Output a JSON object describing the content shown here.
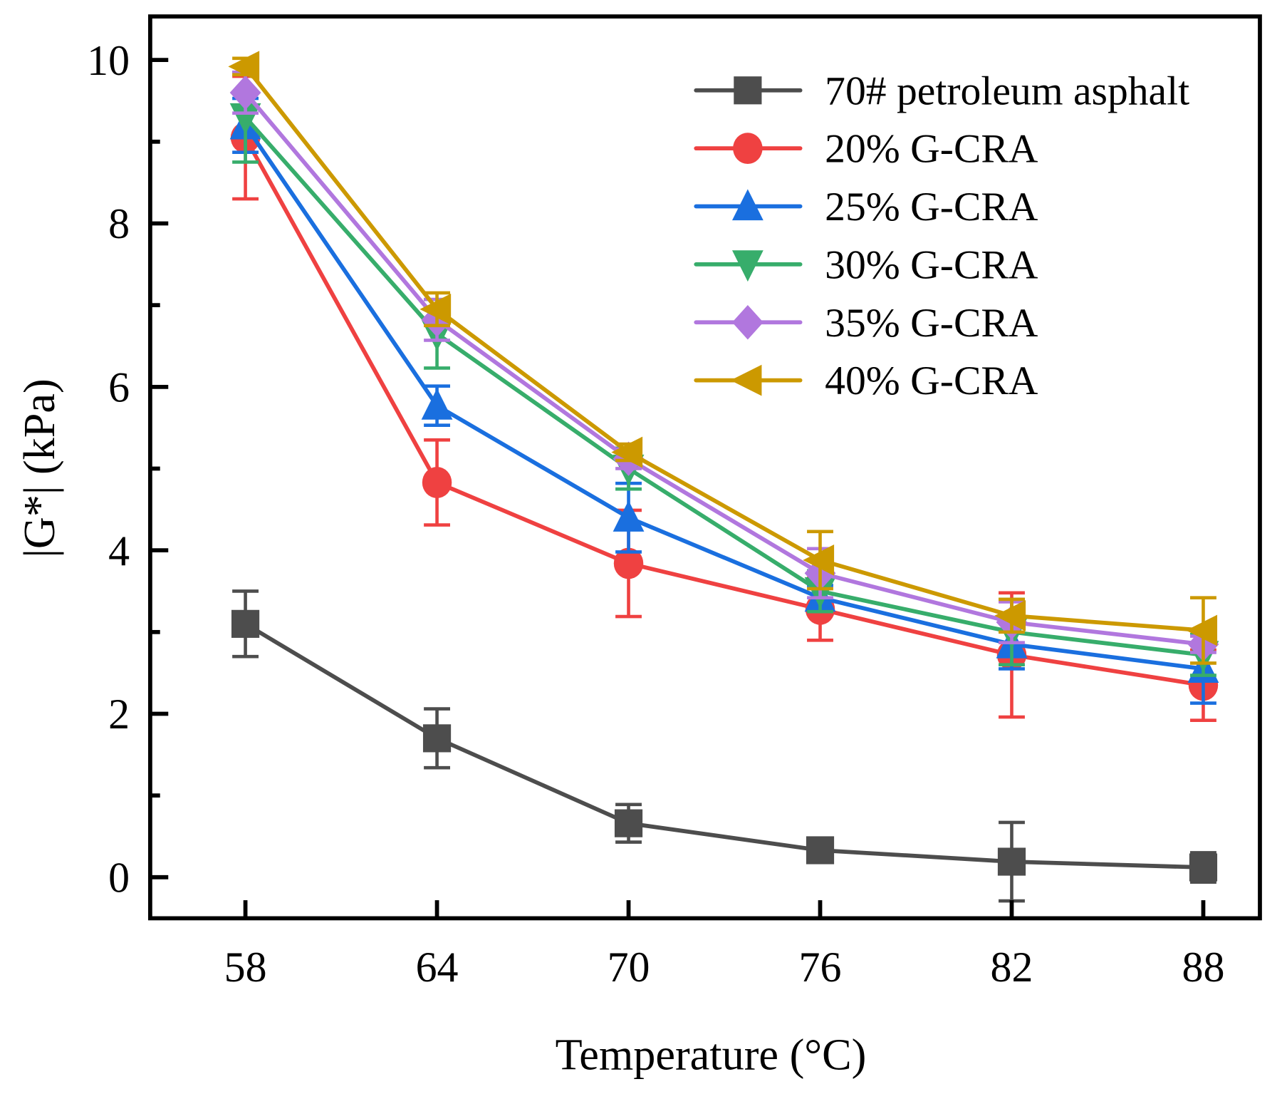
{
  "chart_data": {
    "type": "line",
    "title": "",
    "xlabel": "Temperature  (°C)",
    "ylabel": "|G*|  (kPa)",
    "x": [
      58,
      64,
      70,
      76,
      82,
      88
    ],
    "x_tick_labels": [
      "58",
      "64",
      "70",
      "76",
      "82",
      "88"
    ],
    "y_tick_labels": [
      "0",
      "2",
      "4",
      "6",
      "8",
      "10"
    ],
    "y_ticks": [
      0,
      2,
      4,
      6,
      8,
      10
    ],
    "xlim": [
      55,
      90.8
    ],
    "ylim": [
      -0.5,
      10.5
    ],
    "grid": false,
    "legend_position": "top-right",
    "series": [
      {
        "name": "70# petroleum asphalt",
        "color": "#4d4d4d",
        "marker": "square",
        "values": [
          3.1,
          1.7,
          0.66,
          0.33,
          0.19,
          0.12
        ],
        "errors": [
          0.4,
          0.36,
          0.23,
          0.05,
          0.48,
          0.18
        ]
      },
      {
        "name": "20% G-CRA",
        "color": "#ef4141",
        "marker": "circle",
        "values": [
          9.05,
          4.83,
          3.84,
          3.28,
          2.72,
          2.35
        ],
        "errors": [
          0.75,
          0.52,
          0.65,
          0.38,
          0.76,
          0.43
        ]
      },
      {
        "name": "25% G-CRA",
        "color": "#1a6fdf",
        "marker": "triangle-up",
        "values": [
          9.2,
          5.77,
          4.4,
          3.42,
          2.85,
          2.55
        ],
        "errors": [
          0.33,
          0.24,
          0.42,
          0.15,
          0.3,
          0.42
        ]
      },
      {
        "name": "30% G-CRA",
        "color": "#37ad6b",
        "marker": "triangle-down",
        "values": [
          9.3,
          6.65,
          5.0,
          3.5,
          3.0,
          2.72
        ],
        "errors": [
          0.55,
          0.42,
          0.25,
          0.25,
          0.4,
          0.25
        ]
      },
      {
        "name": "35% G-CRA",
        "color": "#b177de",
        "marker": "diamond",
        "values": [
          9.6,
          6.82,
          5.12,
          3.72,
          3.12,
          2.85
        ],
        "errors": [
          0.25,
          0.25,
          0.12,
          0.3,
          0.25,
          0.1
        ]
      },
      {
        "name": "40% G-CRA",
        "color": "#cc9900",
        "marker": "triangle-left",
        "values": [
          9.92,
          6.95,
          5.2,
          3.88,
          3.2,
          3.02
        ],
        "errors": [
          0.1,
          0.2,
          0.1,
          0.35,
          0.2,
          0.4
        ]
      }
    ]
  }
}
